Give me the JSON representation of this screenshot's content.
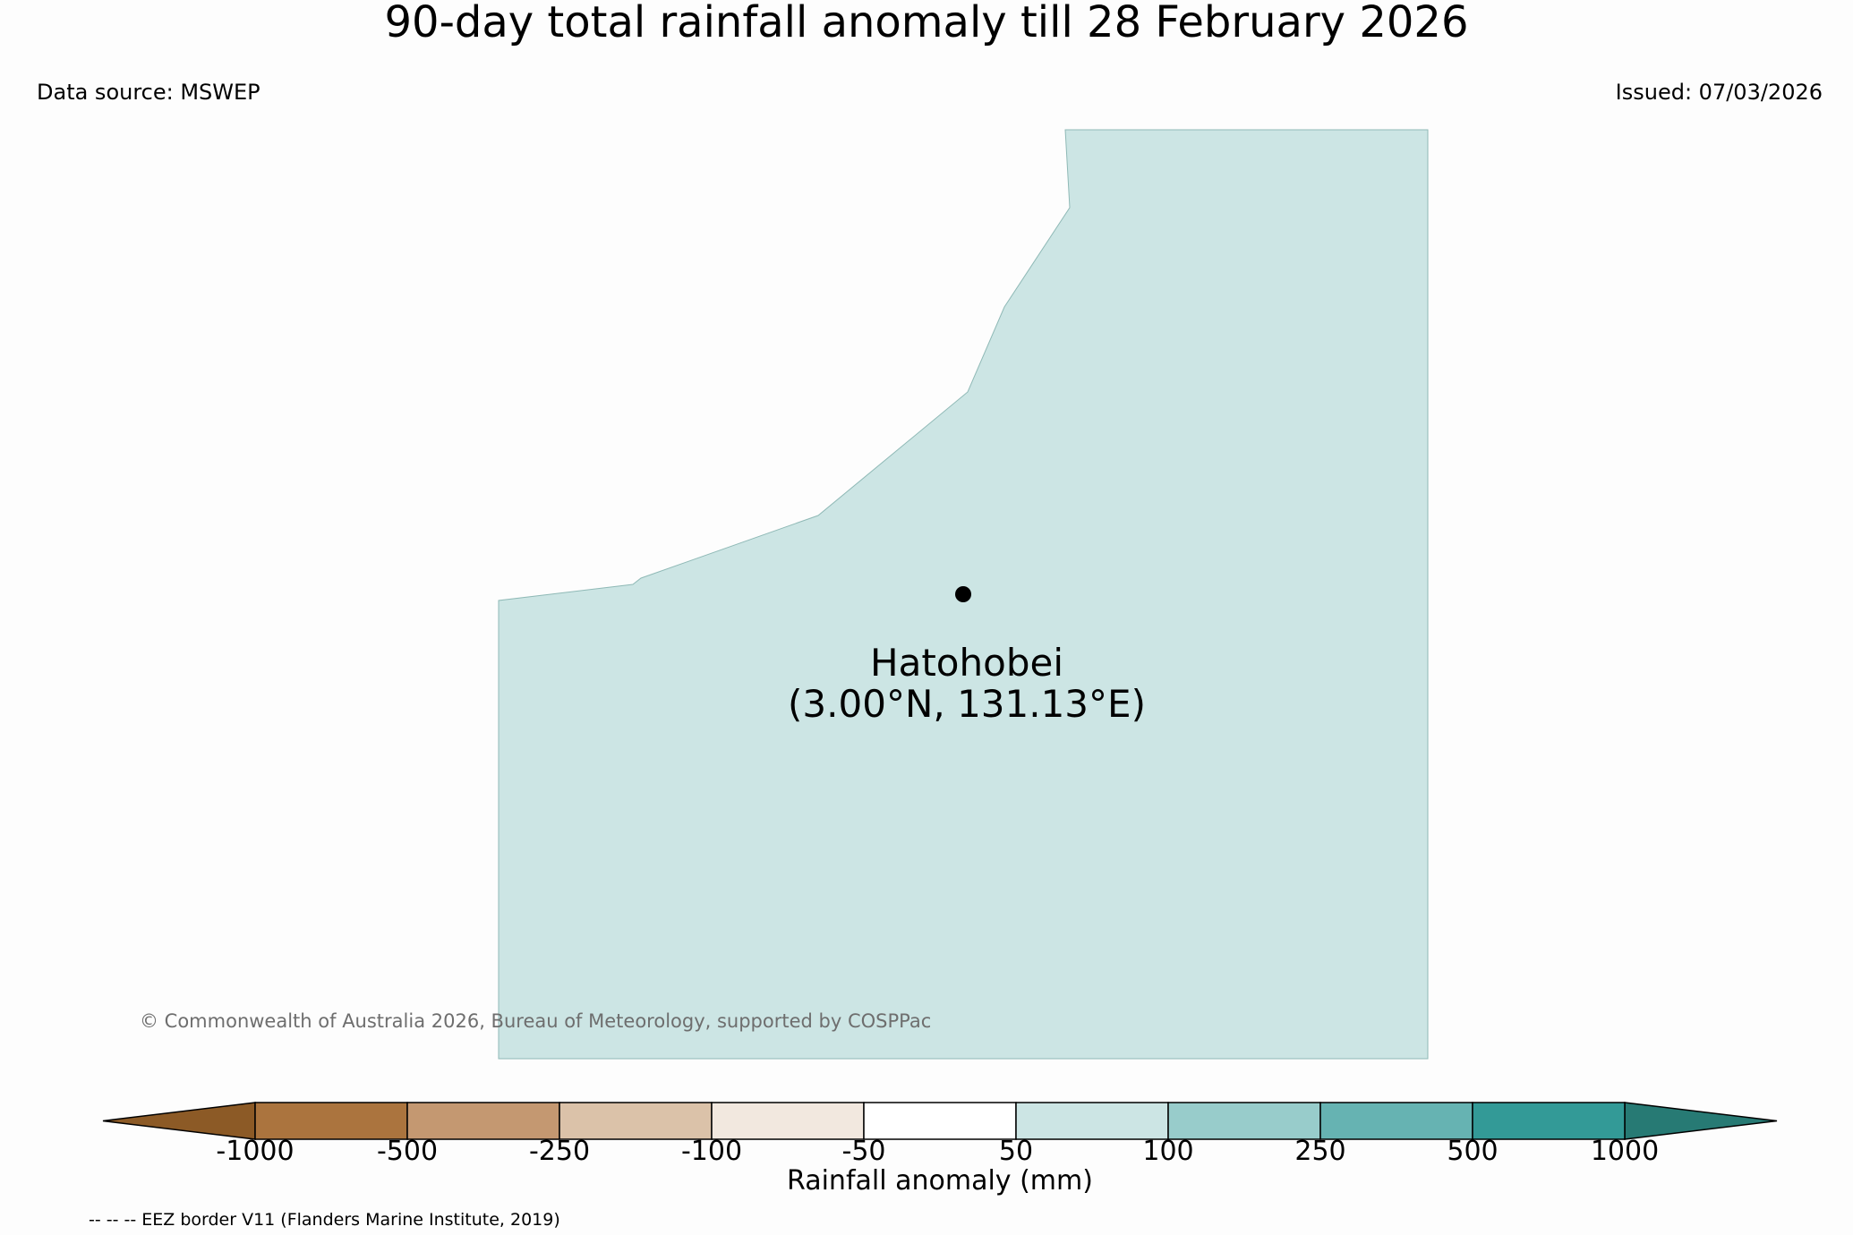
{
  "title": "90-day total rainfall anomaly till 28 February 2026",
  "data_source": "Data source: MSWEP",
  "issued": "Issued: 07/03/2026",
  "map": {
    "region_color": "#cce5e4",
    "region_outline_color": "#8fb9b6",
    "marker_color": "#000000",
    "location": {
      "name": "Hatohobei",
      "coords": "(3.00°N, 131.13°E)"
    }
  },
  "copyright": "© Commonwealth of Australia 2026, Bureau of Meteorology, supported by COSPPac",
  "colorbar": {
    "label": "Rainfall anomaly (mm)",
    "ticks": [
      "-1000",
      "-500",
      "-250",
      "-100",
      "-50",
      "50",
      "100",
      "250",
      "500",
      "1000"
    ],
    "under_color": "#8c5a26",
    "over_color": "#277a74",
    "colors": [
      "#ab743e",
      "#c49871",
      "#dbc2a9",
      "#f2e8df",
      "#ffffff",
      "#cce5e4",
      "#98cccb",
      "#66b3b2",
      "#339a97"
    ]
  },
  "footer_note": "-- -- -- EEZ border V11 (Flanders Marine Institute, 2019)"
}
